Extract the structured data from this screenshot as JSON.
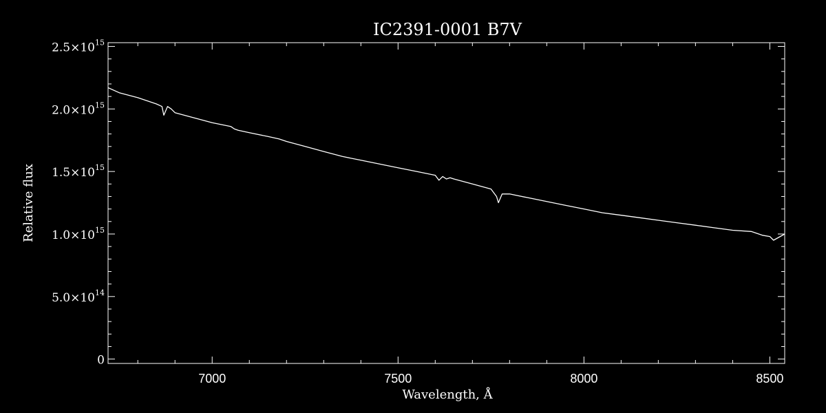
{
  "chart_data": {
    "type": "line",
    "title": "IC2391-0001   B7V",
    "xlabel": "Wavelength, Å",
    "ylabel": "Relative flux",
    "xlim": [
      6720,
      8540
    ],
    "ylim": [
      -35000000000000.0,
      2530000000000000.0
    ],
    "x_ticks": [
      {
        "value": 7000,
        "label": "7000"
      },
      {
        "value": 7500,
        "label": "7500"
      },
      {
        "value": 8000,
        "label": "8000"
      },
      {
        "value": 8500,
        "label": "8500"
      }
    ],
    "y_ticks": [
      {
        "value": 0,
        "mantissa": "0",
        "exponent": ""
      },
      {
        "value": 500000000000000.0,
        "mantissa": "5.0×10",
        "exponent": "14"
      },
      {
        "value": 1000000000000000.0,
        "mantissa": "1.0×10",
        "exponent": "15"
      },
      {
        "value": 1500000000000000.0,
        "mantissa": "1.5×10",
        "exponent": "15"
      },
      {
        "value": 2000000000000000.0,
        "mantissa": "2.0×10",
        "exponent": "15"
      },
      {
        "value": 2500000000000000.0,
        "mantissa": "2.5×10",
        "exponent": "15"
      }
    ],
    "grid": false,
    "line_color": "#ffffff",
    "background": "#000000",
    "series": [
      {
        "name": "",
        "x": [
          6720,
          6750,
          6800,
          6850,
          6865,
          6870,
          6880,
          6890,
          6900,
          6950,
          7000,
          7050,
          7060,
          7070,
          7100,
          7150,
          7180,
          7200,
          7250,
          7300,
          7350,
          7400,
          7450,
          7500,
          7550,
          7600,
          7610,
          7620,
          7630,
          7640,
          7650,
          7700,
          7750,
          7765,
          7770,
          7780,
          7800,
          7850,
          7900,
          7950,
          8000,
          8050,
          8100,
          8150,
          8200,
          8250,
          8300,
          8350,
          8400,
          8450,
          8480,
          8500,
          8510,
          8540
        ],
        "y": [
          2170000000000000.0,
          2130000000000000.0,
          2090000000000000.0,
          2040000000000000.0,
          2020000000000000.0,
          1950000000000000.0,
          2020000000000000.0,
          2000000000000000.0,
          1970000000000000.0,
          1930000000000000.0,
          1890000000000000.0,
          1860000000000000.0,
          1840000000000000.0,
          1830000000000000.0,
          1810000000000000.0,
          1780000000000000.0,
          1760000000000000.0,
          1740000000000000.0,
          1700000000000000.0,
          1660000000000000.0,
          1620000000000000.0,
          1590000000000000.0,
          1560000000000000.0,
          1530000000000000.0,
          1500000000000000.0,
          1470000000000000.0,
          1430000000000000.0,
          1460000000000000.0,
          1440000000000000.0,
          1450000000000000.0,
          1440000000000000.0,
          1400000000000000.0,
          1360000000000000.0,
          1300000000000000.0,
          1250000000000000.0,
          1320000000000000.0,
          1320000000000000.0,
          1290000000000000.0,
          1260000000000000.0,
          1230000000000000.0,
          1200000000000000.0,
          1170000000000000.0,
          1150000000000000.0,
          1130000000000000.0,
          1110000000000000.0,
          1090000000000000.0,
          1070000000000000.0,
          1050000000000000.0,
          1030000000000000.0,
          1020000000000000.0,
          990000000000000.0,
          980000000000000.0,
          950000000000000.0,
          1000000000000000.0
        ]
      }
    ]
  }
}
